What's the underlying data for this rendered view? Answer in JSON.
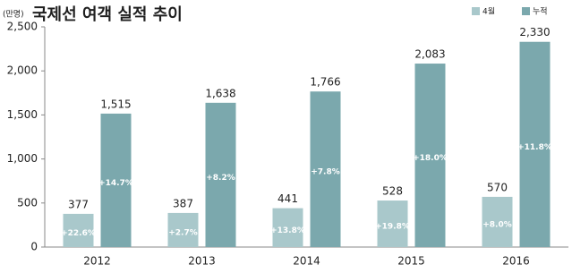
{
  "chart_data": {
    "type": "bar",
    "title": "국제선 여객 실적 추이",
    "unit": "(만명)",
    "categories": [
      "2012",
      "2013",
      "2014",
      "2015",
      "2016"
    ],
    "series": [
      {
        "name": "4월",
        "color": "#a9c8cb",
        "values": [
          377,
          387,
          441,
          528,
          570
        ],
        "growth_labels": [
          "+22.6%",
          "+2.7%",
          "+13.8%",
          "+19.8%",
          "+8.0%"
        ]
      },
      {
        "name": "누적",
        "color": "#7ba8ad",
        "values": [
          1515,
          1638,
          1766,
          2083,
          2330
        ],
        "value_labels": [
          "1,515",
          "1,638",
          "1,766",
          "2,083",
          "2,330"
        ],
        "growth_labels": [
          "+14.7%",
          "+8.2%",
          "+7.8%",
          "+18.0%",
          "+11.8%"
        ]
      }
    ],
    "ylim": [
      0,
      2500
    ],
    "yticks": [
      0,
      500,
      {
        "value": 1000,
        "label": "1,000"
      },
      {
        "value": 1500,
        "label": "1,500"
      },
      {
        "value": 2000,
        "label": "2,000"
      },
      {
        "value": 2500,
        "label": "2,500"
      }
    ],
    "grid": false,
    "legend": "top-right"
  }
}
